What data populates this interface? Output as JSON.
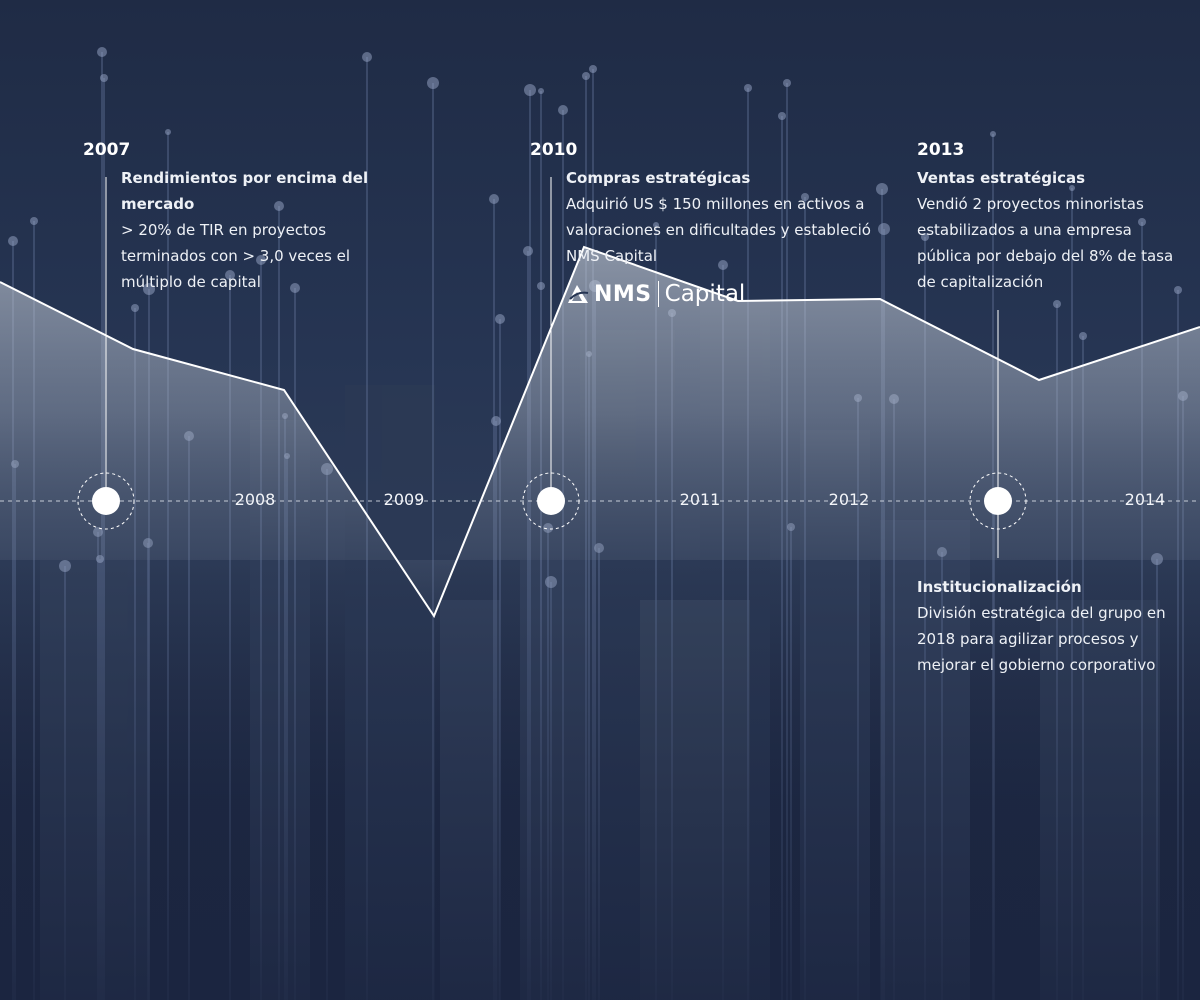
{
  "timeline": {
    "events": [
      {
        "year": "2007",
        "title": "Rendimientos por encima del mercado",
        "text": "> 20% de TIR en proyectos terminados con > 3,0 veces el múltiplo de capital"
      },
      {
        "year": "2010",
        "title": "Compras estratégicas",
        "text": "Adquirió US $ 150 millones en activos a valoraciones en dificultades y estableció NMS Capital"
      },
      {
        "year": "2013",
        "title": "Ventas estratégicas",
        "text": "Vendió 2 proyectos minoristas estabilizados a una empresa pública por debajo del 8% de tasa de capitalización"
      },
      {
        "year": "",
        "title": "Institucionalización",
        "text": "División estratégica del grupo en 2018 para agilizar procesos y mejorar el gobierno corporativo"
      }
    ],
    "axis_years": [
      "2008",
      "2009",
      "2011",
      "2012",
      "2014"
    ]
  },
  "logo": {
    "brand": "NMS",
    "name": "Capital"
  },
  "colors": {
    "background": "#263553",
    "line": "#ffffff",
    "area_fill": "#c8d0dc"
  }
}
